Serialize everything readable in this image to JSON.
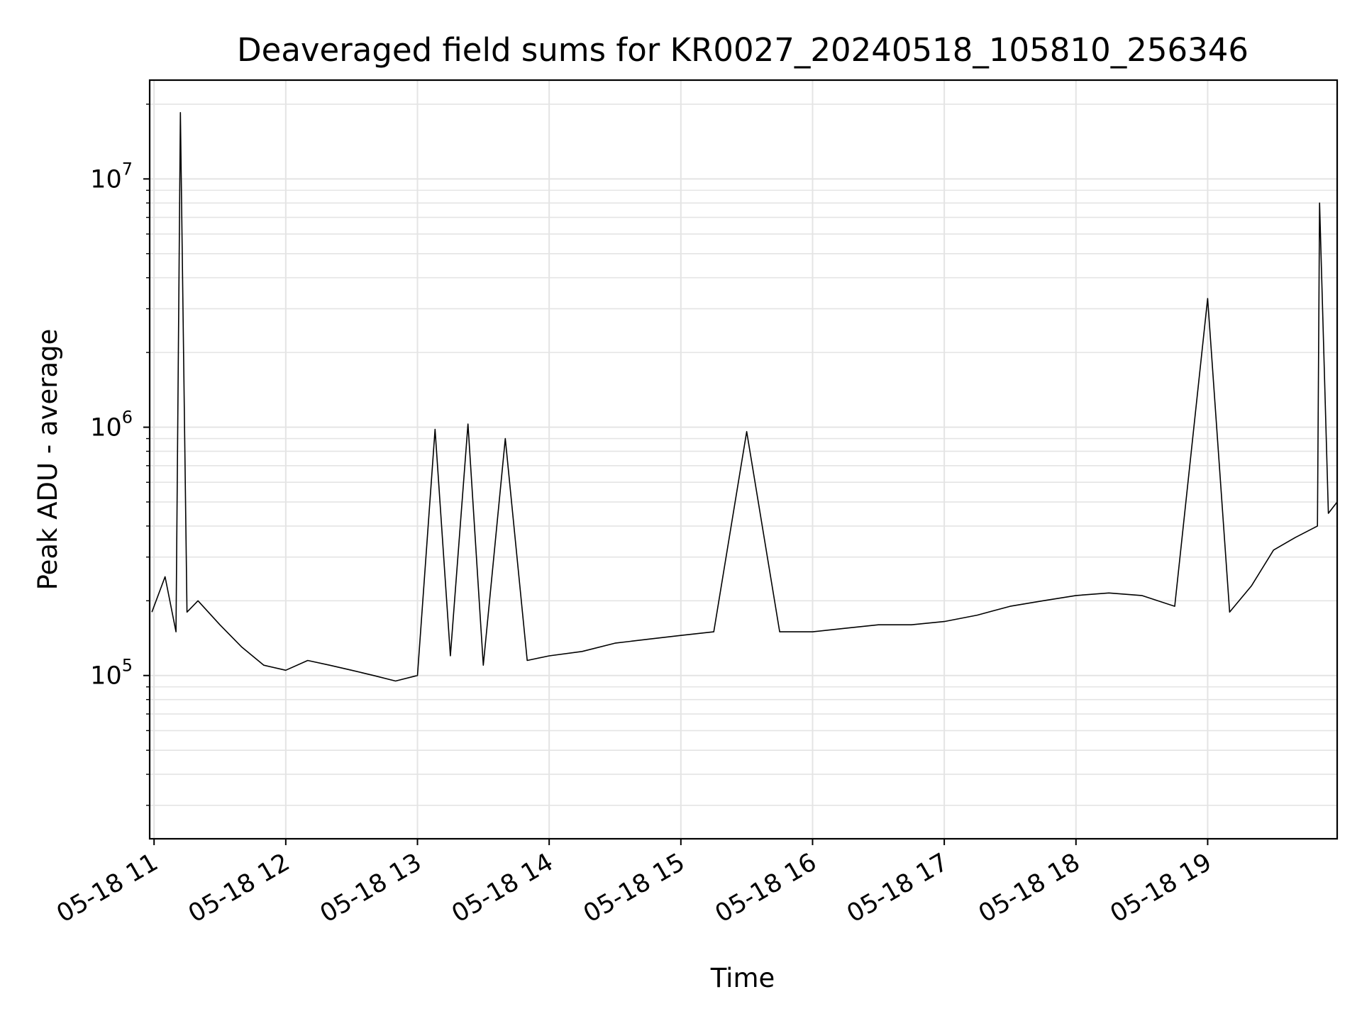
{
  "chart_data": {
    "type": "line",
    "title": "Deaveraged field sums for KR0027_20240518_105810_256346",
    "xlabel": "Time",
    "ylabel": "Peak ADU - average",
    "x_range": [
      "2024-05-18 10:58",
      "2024-05-18 19:59"
    ],
    "y_scale": "log",
    "ylim": [
      22000,
      25000000
    ],
    "grid": true,
    "x_ticks": [
      "05-18 11",
      "05-18 12",
      "05-18 13",
      "05-18 14",
      "05-18 15",
      "05-18 16",
      "05-18 17",
      "05-18 18",
      "05-18 19"
    ],
    "y_ticks": [
      {
        "base": "10",
        "exp": "5",
        "value": 100000
      },
      {
        "base": "10",
        "exp": "6",
        "value": 1000000
      },
      {
        "base": "10",
        "exp": "7",
        "value": 10000000
      }
    ],
    "line_color": "#000000",
    "series": [
      {
        "values": [
          [
            "2024-05-18 10:59",
            180000
          ],
          [
            "2024-05-18 11:05",
            250000
          ],
          [
            "2024-05-18 11:10",
            150000
          ],
          [
            "2024-05-18 11:12",
            18500000
          ],
          [
            "2024-05-18 11:15",
            180000
          ],
          [
            "2024-05-18 11:20",
            200000
          ],
          [
            "2024-05-18 11:30",
            160000
          ],
          [
            "2024-05-18 11:40",
            130000
          ],
          [
            "2024-05-18 11:50",
            110000
          ],
          [
            "2024-05-18 12:00",
            105000
          ],
          [
            "2024-05-18 12:10",
            115000
          ],
          [
            "2024-05-18 12:20",
            110000
          ],
          [
            "2024-05-18 12:30",
            105000
          ],
          [
            "2024-05-18 12:40",
            100000
          ],
          [
            "2024-05-18 12:50",
            95000
          ],
          [
            "2024-05-18 13:00",
            100000
          ],
          [
            "2024-05-18 13:08",
            980000
          ],
          [
            "2024-05-18 13:15",
            120000
          ],
          [
            "2024-05-18 13:23",
            1030000
          ],
          [
            "2024-05-18 13:30",
            110000
          ],
          [
            "2024-05-18 13:40",
            900000
          ],
          [
            "2024-05-18 13:50",
            115000
          ],
          [
            "2024-05-18 14:00",
            120000
          ],
          [
            "2024-05-18 14:15",
            125000
          ],
          [
            "2024-05-18 14:30",
            135000
          ],
          [
            "2024-05-18 14:45",
            140000
          ],
          [
            "2024-05-18 15:00",
            145000
          ],
          [
            "2024-05-18 15:15",
            150000
          ],
          [
            "2024-05-18 15:30",
            960000
          ],
          [
            "2024-05-18 15:45",
            150000
          ],
          [
            "2024-05-18 16:00",
            150000
          ],
          [
            "2024-05-18 16:15",
            155000
          ],
          [
            "2024-05-18 16:30",
            160000
          ],
          [
            "2024-05-18 16:45",
            160000
          ],
          [
            "2024-05-18 17:00",
            165000
          ],
          [
            "2024-05-18 17:15",
            175000
          ],
          [
            "2024-05-18 17:30",
            190000
          ],
          [
            "2024-05-18 17:45",
            200000
          ],
          [
            "2024-05-18 18:00",
            210000
          ],
          [
            "2024-05-18 18:15",
            215000
          ],
          [
            "2024-05-18 18:30",
            210000
          ],
          [
            "2024-05-18 18:45",
            190000
          ],
          [
            "2024-05-18 19:00",
            3300000
          ],
          [
            "2024-05-18 19:10",
            180000
          ],
          [
            "2024-05-18 19:20",
            230000
          ],
          [
            "2024-05-18 19:30",
            320000
          ],
          [
            "2024-05-18 19:40",
            360000
          ],
          [
            "2024-05-18 19:50",
            400000
          ],
          [
            "2024-05-18 19:51",
            8000000
          ],
          [
            "2024-05-18 19:55",
            450000
          ],
          [
            "2024-05-18 19:59",
            500000
          ]
        ]
      }
    ]
  }
}
